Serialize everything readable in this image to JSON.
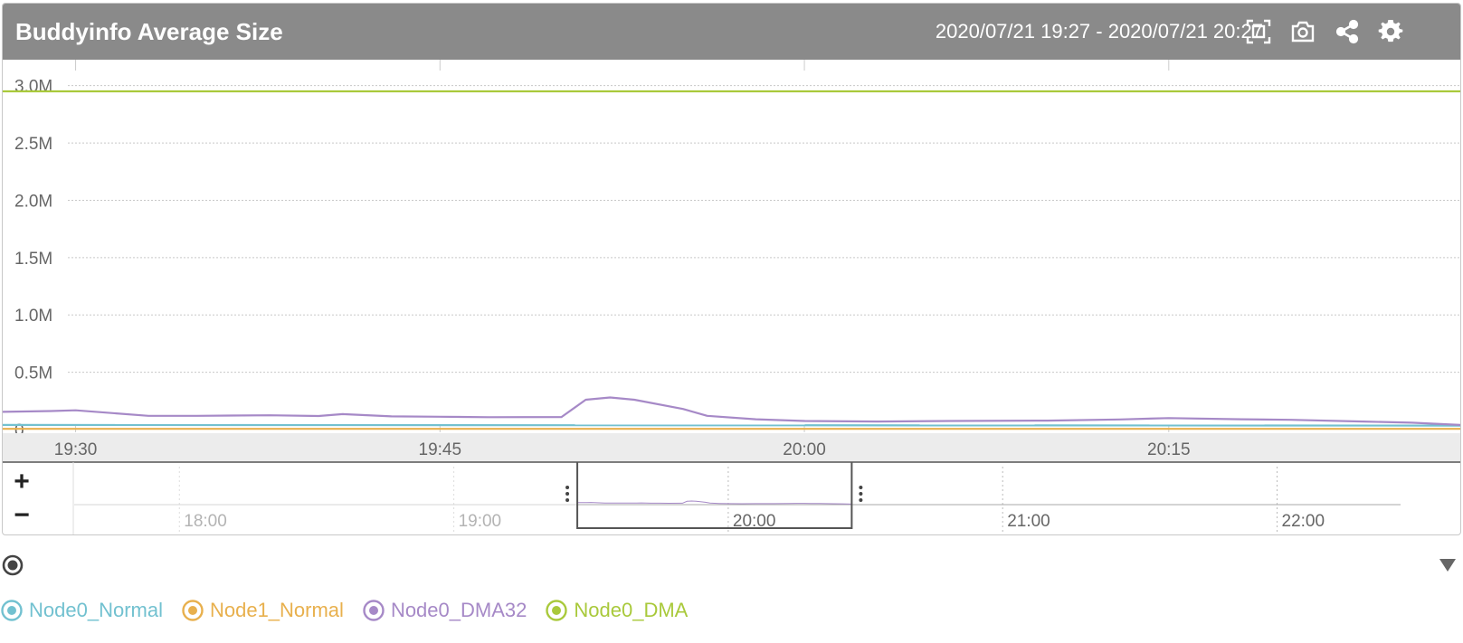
{
  "panel": {
    "title": "Buddyinfo Average Size",
    "time_range": "2020/07/21 19:27 - 2020/07/21 20:27",
    "icons": [
      "fullscreen-icon",
      "camera-icon",
      "share-icon",
      "gear-icon"
    ]
  },
  "colors": {
    "header": "#8a8a8a",
    "Node0_Normal": "#72c1d0",
    "Node1_Normal": "#e8b04d",
    "Node0_DMA32": "#a689c7",
    "Node0_DMA": "#a9c93b",
    "grid": "#c8c8c8"
  },
  "chart_data": {
    "type": "line",
    "title": "Buddyinfo Average Size",
    "x_range": [
      "19:27",
      "20:27"
    ],
    "x_ticks": [
      "19:30",
      "19:45",
      "20:00",
      "20:15"
    ],
    "y_ticks": [
      "0",
      "0.5M",
      "1.0M",
      "1.5M",
      "2.0M",
      "2.5M",
      "3.0M"
    ],
    "ylim": [
      0,
      3100000
    ],
    "grid": true,
    "legend_position": "bottom-left",
    "series": [
      {
        "name": "Node0_Normal",
        "color": "#72c1d0",
        "points": [
          [
            "19:27",
            40000
          ],
          [
            "20:27",
            35000
          ]
        ]
      },
      {
        "name": "Node1_Normal",
        "color": "#e8b04d",
        "points": [
          [
            "19:27",
            6000
          ],
          [
            "20:27",
            6000
          ]
        ]
      },
      {
        "name": "Node0_DMA32",
        "color": "#a689c7",
        "points": [
          [
            "19:27",
            155000
          ],
          [
            "19:29",
            162000
          ],
          [
            "19:30",
            168000
          ],
          [
            "19:33",
            120000
          ],
          [
            "19:35",
            120000
          ],
          [
            "19:38",
            125000
          ],
          [
            "19:40",
            118000
          ],
          [
            "19:41",
            135000
          ],
          [
            "19:43",
            115000
          ],
          [
            "19:45",
            112000
          ],
          [
            "19:47",
            108000
          ],
          [
            "19:50",
            110000
          ],
          [
            "19:51",
            260000
          ],
          [
            "19:52",
            280000
          ],
          [
            "19:53",
            260000
          ],
          [
            "19:55",
            180000
          ],
          [
            "19:56",
            120000
          ],
          [
            "19:58",
            90000
          ],
          [
            "20:00",
            75000
          ],
          [
            "20:03",
            70000
          ],
          [
            "20:06",
            75000
          ],
          [
            "20:10",
            78000
          ],
          [
            "20:13",
            88000
          ],
          [
            "20:15",
            100000
          ],
          [
            "20:18",
            90000
          ],
          [
            "20:20",
            85000
          ],
          [
            "20:23",
            70000
          ],
          [
            "20:25",
            60000
          ],
          [
            "20:27",
            40000
          ]
        ]
      },
      {
        "name": "Node0_DMA",
        "color": "#a9c93b",
        "points": [
          [
            "19:27",
            2950000
          ],
          [
            "20:27",
            2950000
          ]
        ]
      }
    ]
  },
  "navigator": {
    "zoom_in": "+",
    "zoom_out": "−",
    "range": [
      "17:37",
      "22:27"
    ],
    "ticks": [
      "18:00",
      "19:00",
      "20:00",
      "21:00",
      "22:00"
    ],
    "window": [
      "19:27",
      "20:27"
    ]
  },
  "legend": {
    "items": [
      "Node0_Normal",
      "Node1_Normal",
      "Node0_DMA32",
      "Node0_DMA"
    ]
  }
}
